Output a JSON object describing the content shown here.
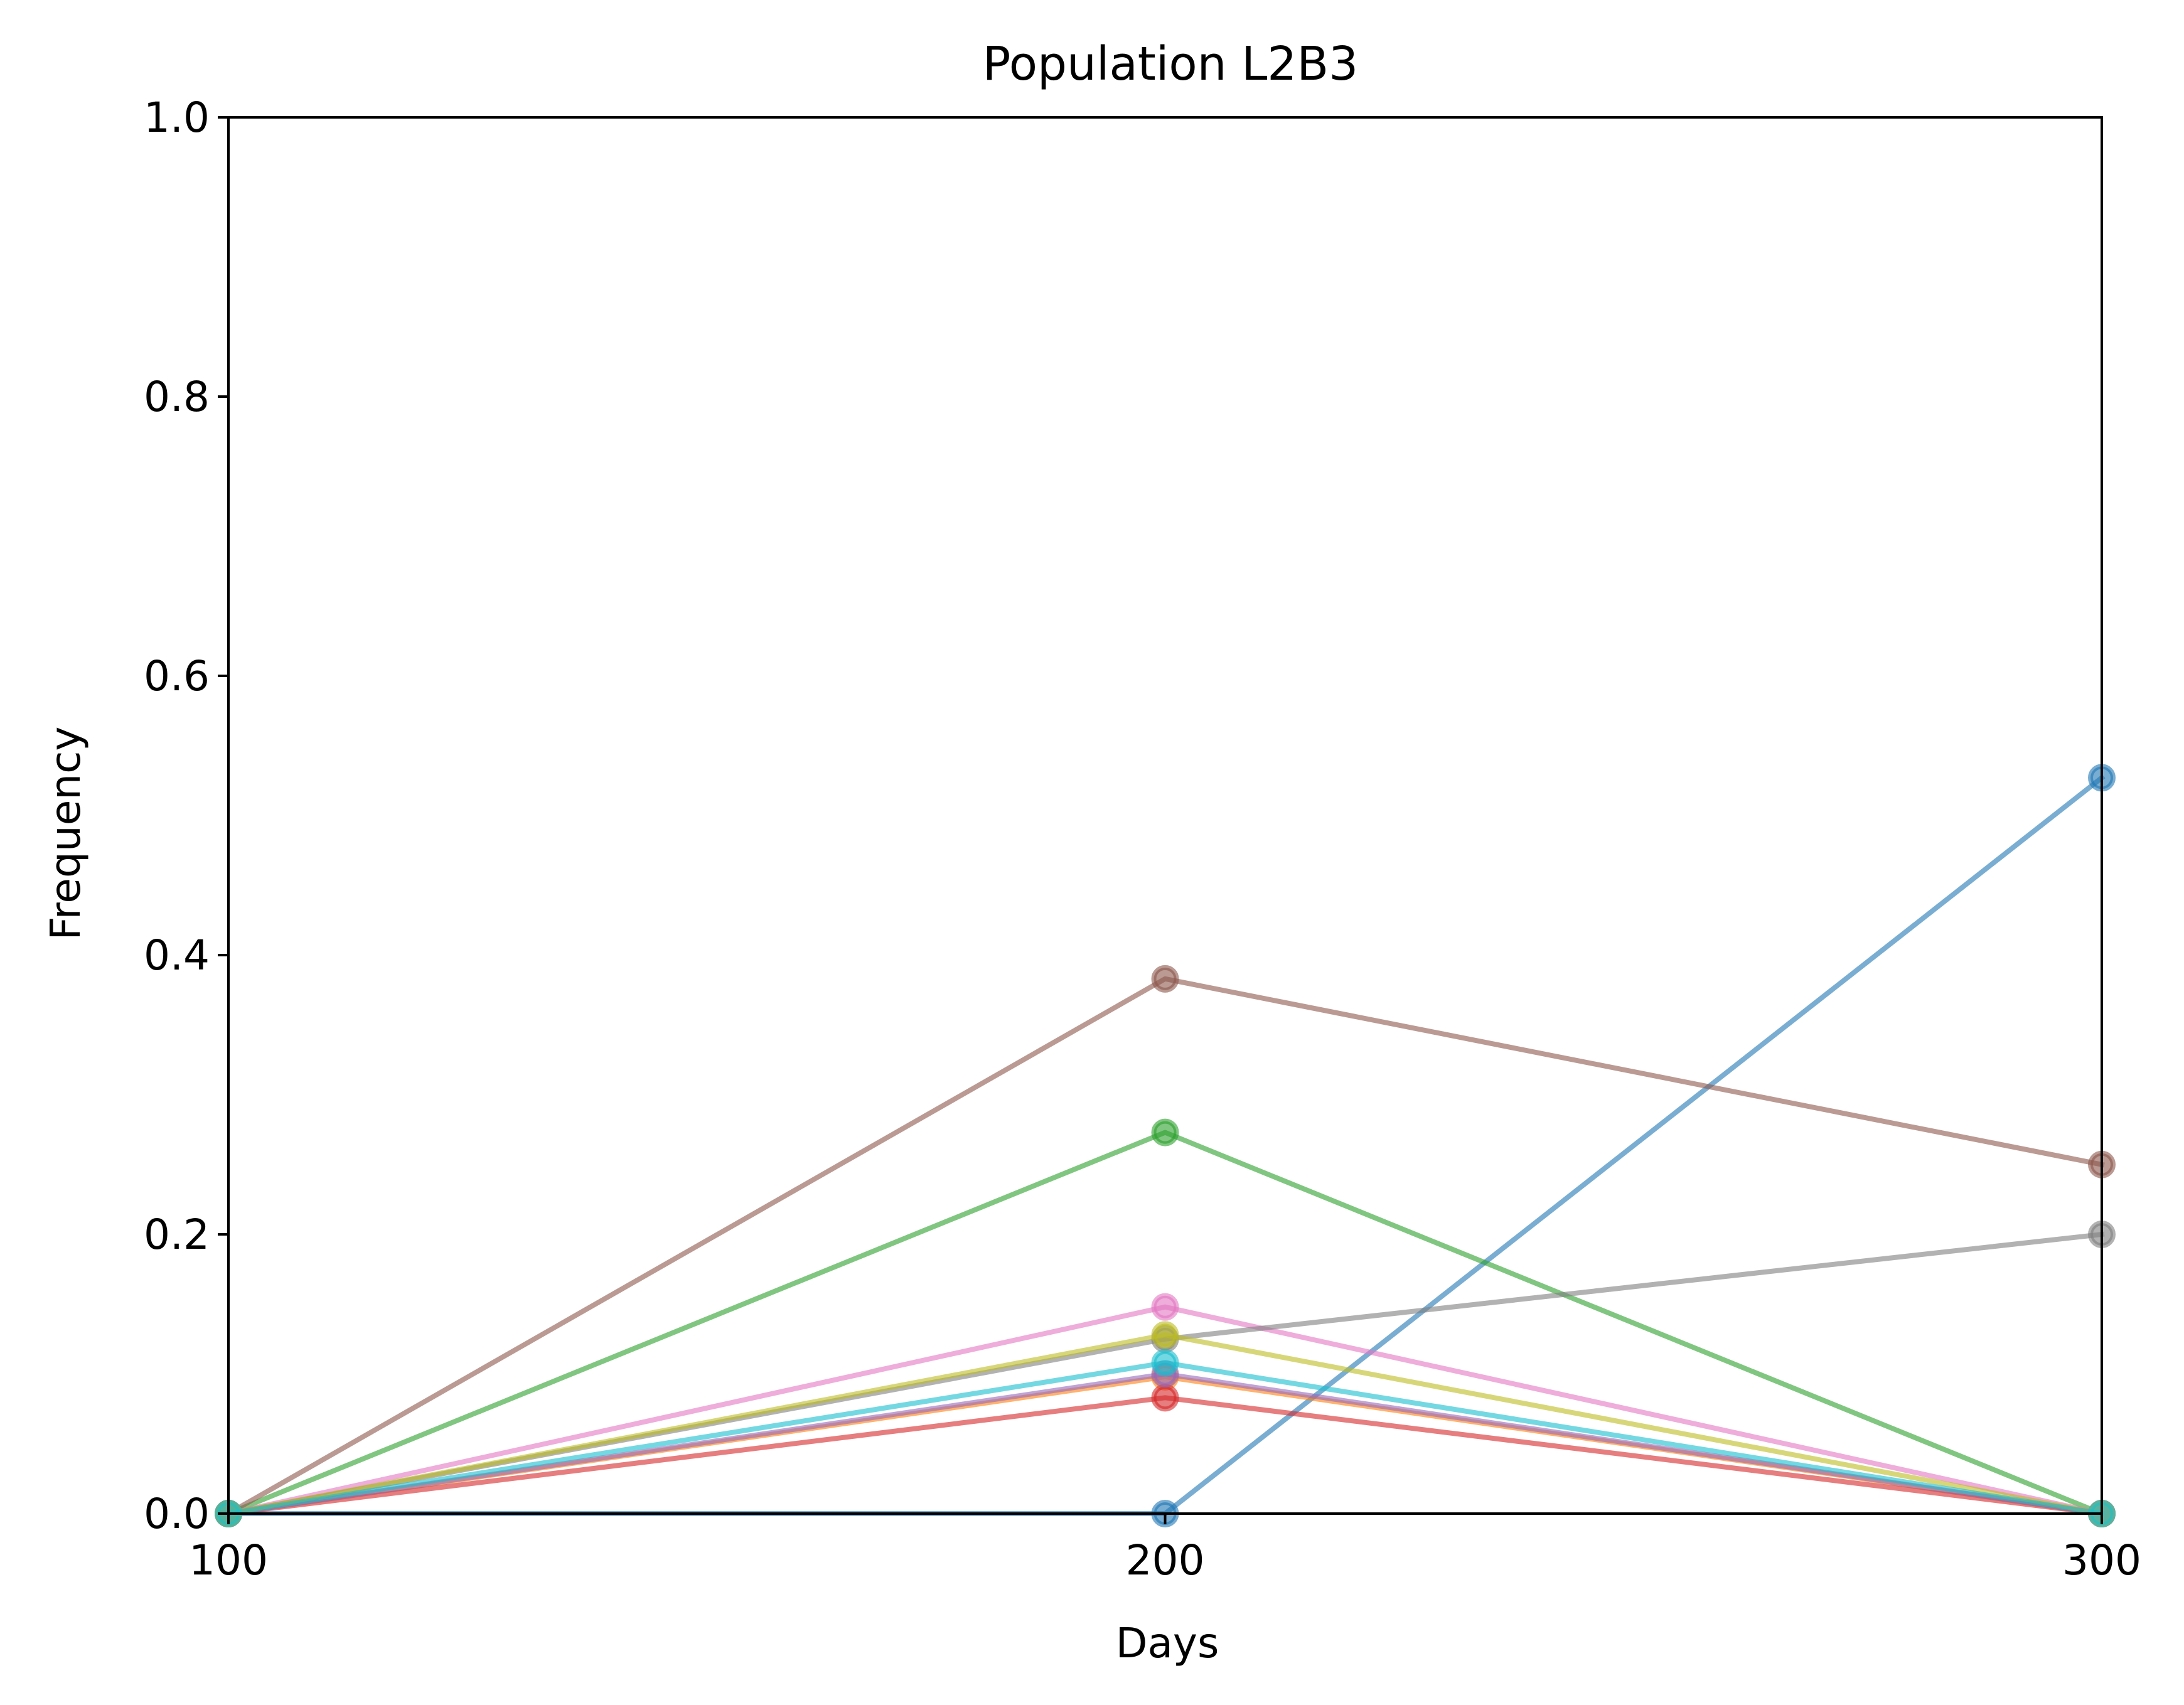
{
  "chart_data": {
    "type": "line",
    "title": "Population L2B3",
    "xlabel": "Days",
    "ylabel": "Frequency",
    "xlim": [
      100,
      300
    ],
    "ylim": [
      0,
      1
    ],
    "xticks": [
      100,
      200,
      300
    ],
    "xtick_labels": [
      "100",
      "200",
      "300"
    ],
    "yticks": [
      0,
      0.2,
      0.4,
      0.6,
      0.8,
      1.0
    ],
    "ytick_labels": [
      "0.0",
      "0.2",
      "0.4",
      "0.6",
      "0.8",
      "1.0"
    ],
    "grid": false,
    "legend": false,
    "x": [
      100,
      200,
      300
    ],
    "series": [
      {
        "color": "#1f77b4",
        "values": [
          0,
          0,
          0.527
        ]
      },
      {
        "color": "#ff7f0e",
        "values": [
          0,
          0.098,
          0
        ]
      },
      {
        "color": "#2ca02c",
        "values": [
          0,
          0.273,
          0
        ]
      },
      {
        "color": "#d62728",
        "values": [
          0,
          0.083,
          0
        ]
      },
      {
        "color": "#9467bd",
        "values": [
          0,
          0.1,
          0
        ]
      },
      {
        "color": "#8c564b",
        "values": [
          0,
          0.383,
          0.25
        ]
      },
      {
        "color": "#e377c2",
        "values": [
          0,
          0.148,
          0
        ]
      },
      {
        "color": "#7f7f7f",
        "values": [
          0,
          0.125,
          0.2
        ]
      },
      {
        "color": "#bcbd22",
        "values": [
          0,
          0.128,
          0
        ]
      },
      {
        "color": "#17becf",
        "values": [
          0,
          0.108,
          0
        ]
      }
    ]
  }
}
